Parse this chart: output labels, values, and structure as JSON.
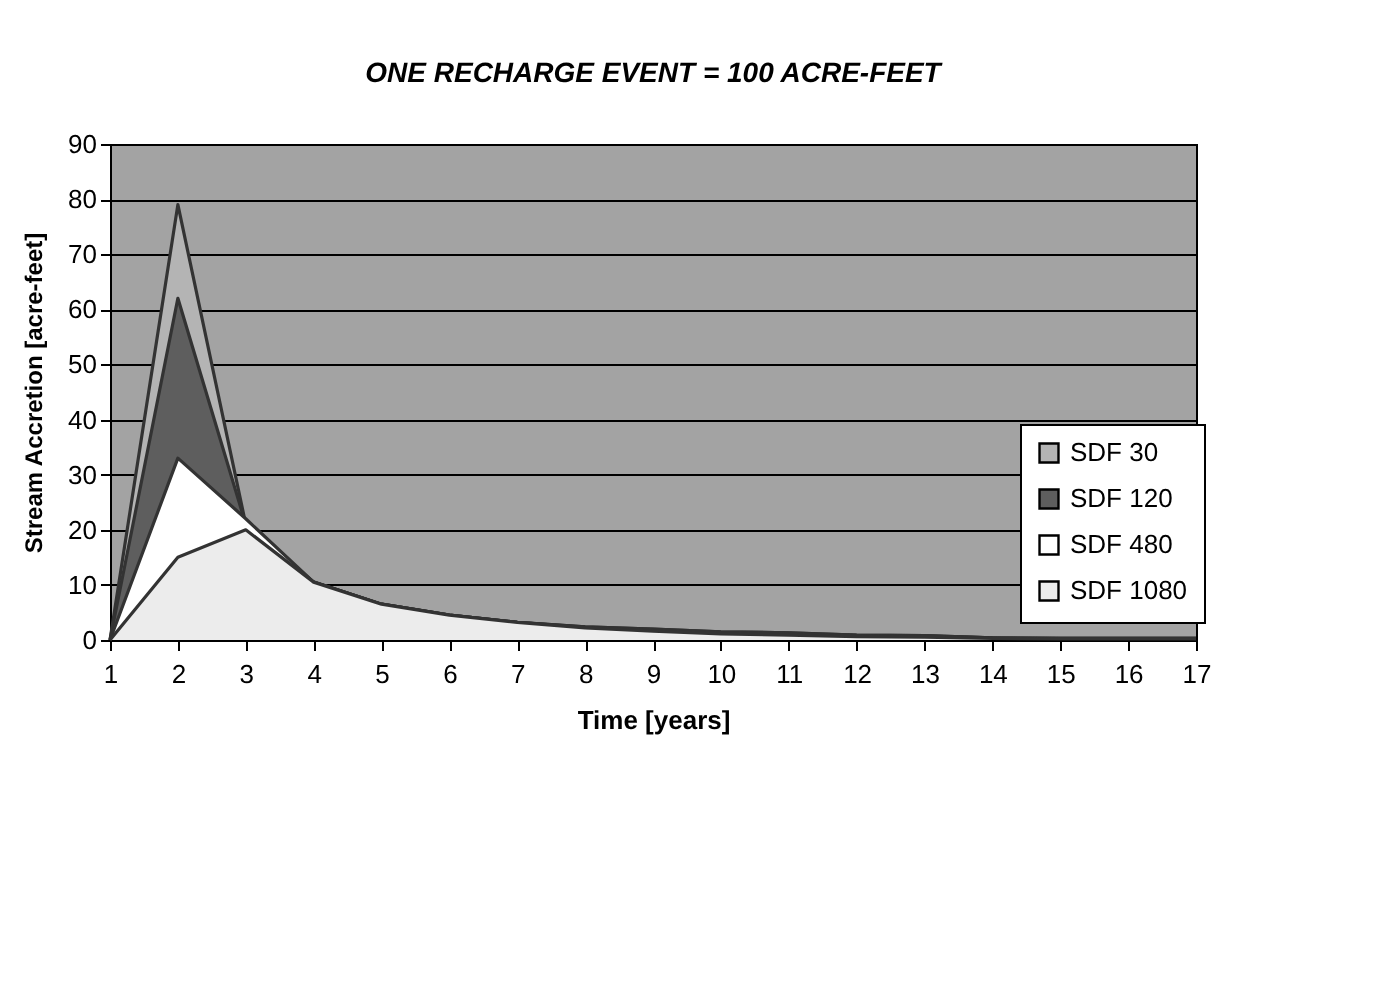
{
  "chart_data": {
    "type": "area",
    "title": "ONE RECHARGE EVENT = 100 ACRE-FEET",
    "xlabel": "Time [years]",
    "ylabel": "Stream Accretion [acre-feet]",
    "x": [
      1,
      2,
      3,
      4,
      5,
      6,
      7,
      8,
      9,
      10,
      11,
      12,
      13,
      14,
      15,
      16,
      17
    ],
    "series": [
      {
        "name": "SDF 30",
        "color": "#b4b4b4",
        "values": [
          0,
          79,
          21,
          10.5,
          6.5,
          4.5,
          3.2,
          2.4,
          2,
          1.5,
          1.3,
          0.9,
          0.8,
          0.4,
          0.3,
          0.3,
          0.3
        ]
      },
      {
        "name": "SDF 120",
        "color": "#5e5e5e",
        "values": [
          0,
          62,
          21,
          10.5,
          6.5,
          4.5,
          3.2,
          2.4,
          2,
          1.5,
          1.3,
          0.9,
          0.8,
          0.4,
          0.3,
          0.3,
          0.3
        ]
      },
      {
        "name": "SDF 480",
        "color": "#ffffff",
        "values": [
          0,
          33,
          22,
          10.5,
          6.5,
          4.5,
          3.2,
          2.3,
          1.8,
          1.3,
          1.1,
          0.8,
          0.7,
          0.4,
          0.3,
          0.3,
          0.3
        ]
      },
      {
        "name": "SDF 1080",
        "color": "#ececec",
        "values": [
          0,
          15,
          20,
          10.5,
          6.5,
          4.5,
          3.2,
          2.2,
          1.6,
          1.1,
          0.9,
          0.6,
          0.5,
          0.3,
          0.2,
          0.2,
          0.2
        ]
      }
    ],
    "xlim": [
      1,
      17
    ],
    "xticks": [
      1,
      2,
      3,
      4,
      5,
      6,
      7,
      8,
      9,
      10,
      11,
      12,
      13,
      14,
      15,
      16,
      17
    ],
    "ylim": [
      0,
      90
    ],
    "yticks": [
      0,
      10,
      20,
      30,
      40,
      50,
      60,
      70,
      80,
      90
    ],
    "grid": "y",
    "legend": "right",
    "marker": "none",
    "line_style": "solid"
  }
}
